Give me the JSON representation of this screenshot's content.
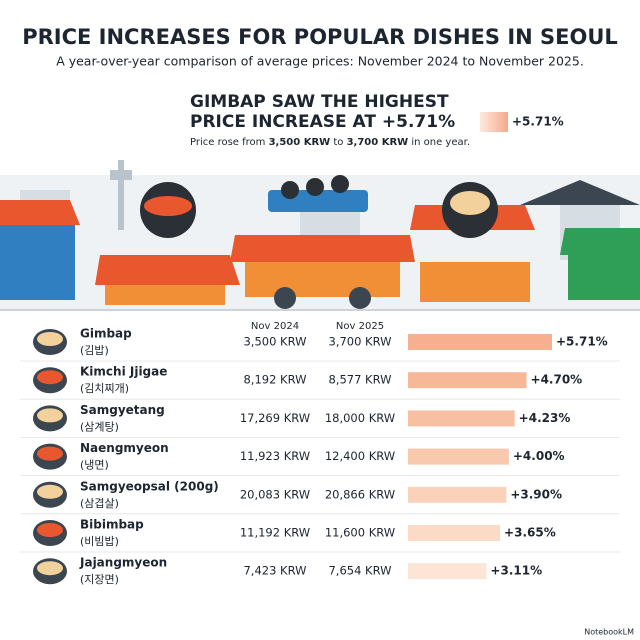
{
  "header": {
    "title": "PRICE INCREASES FOR POPULAR DISHES IN SEOUL",
    "subtitle": "A year-over-year comparison of average prices: November 2024 to November 2025."
  },
  "highlight": {
    "headline_1": "GIMBAP SAW THE HIGHEST",
    "headline_2": "PRICE INCREASE AT +5.71%",
    "change": 5.71,
    "change_label": "+5.71%",
    "note": [
      "Price rose from ",
      "3,500 KRW",
      " to ",
      "3,700 KRW",
      " in one year."
    ]
  },
  "table": {
    "columns": [
      "Nov 2024",
      "Nov 2025"
    ],
    "rows": [
      {
        "name": "Gimbap",
        "korean": "(김밥)",
        "nov_2024": "3,500 KRW",
        "nov_2025": "3,700 KRW",
        "change": 5.71,
        "change_label": "+5.71%"
      },
      {
        "name": "Kimchi Jjigae",
        "korean": "(김치찌개)",
        "nov_2024": "8,192 KRW",
        "nov_2025": "8,577 KRW",
        "change": 4.7,
        "change_label": "+4.70%"
      },
      {
        "name": "Samgyetang",
        "korean": "(삼계탕)",
        "nov_2024": "17,269 KRW",
        "nov_2025": "18,000 KRW",
        "change": 4.23,
        "change_label": "+4.23%"
      },
      {
        "name": "Naengmyeon",
        "korean": "(냉면)",
        "nov_2024": "11,923 KRW",
        "nov_2025": "12,400 KRW",
        "change": 4.0,
        "change_label": "+4.00%"
      },
      {
        "name": "Samgyeopsal (200g)",
        "korean": "(삼겹살)",
        "nov_2024": "20,083 KRW",
        "nov_2025": "20,866 KRW",
        "change": 3.9,
        "change_label": "+3.90%"
      },
      {
        "name": "Bibimbap",
        "korean": "(비빔밥)",
        "nov_2024": "11,192 KRW",
        "nov_2025": "11,600 KRW",
        "change": 3.65,
        "change_label": "+3.65%"
      },
      {
        "name": "Jajangmyeon",
        "korean": "(지장면)",
        "nov_2024": "7,423 KRW",
        "nov_2025": "7,654 KRW",
        "change": 3.11,
        "change_label": "+3.11%"
      }
    ]
  },
  "footer": "NotebookLM"
}
